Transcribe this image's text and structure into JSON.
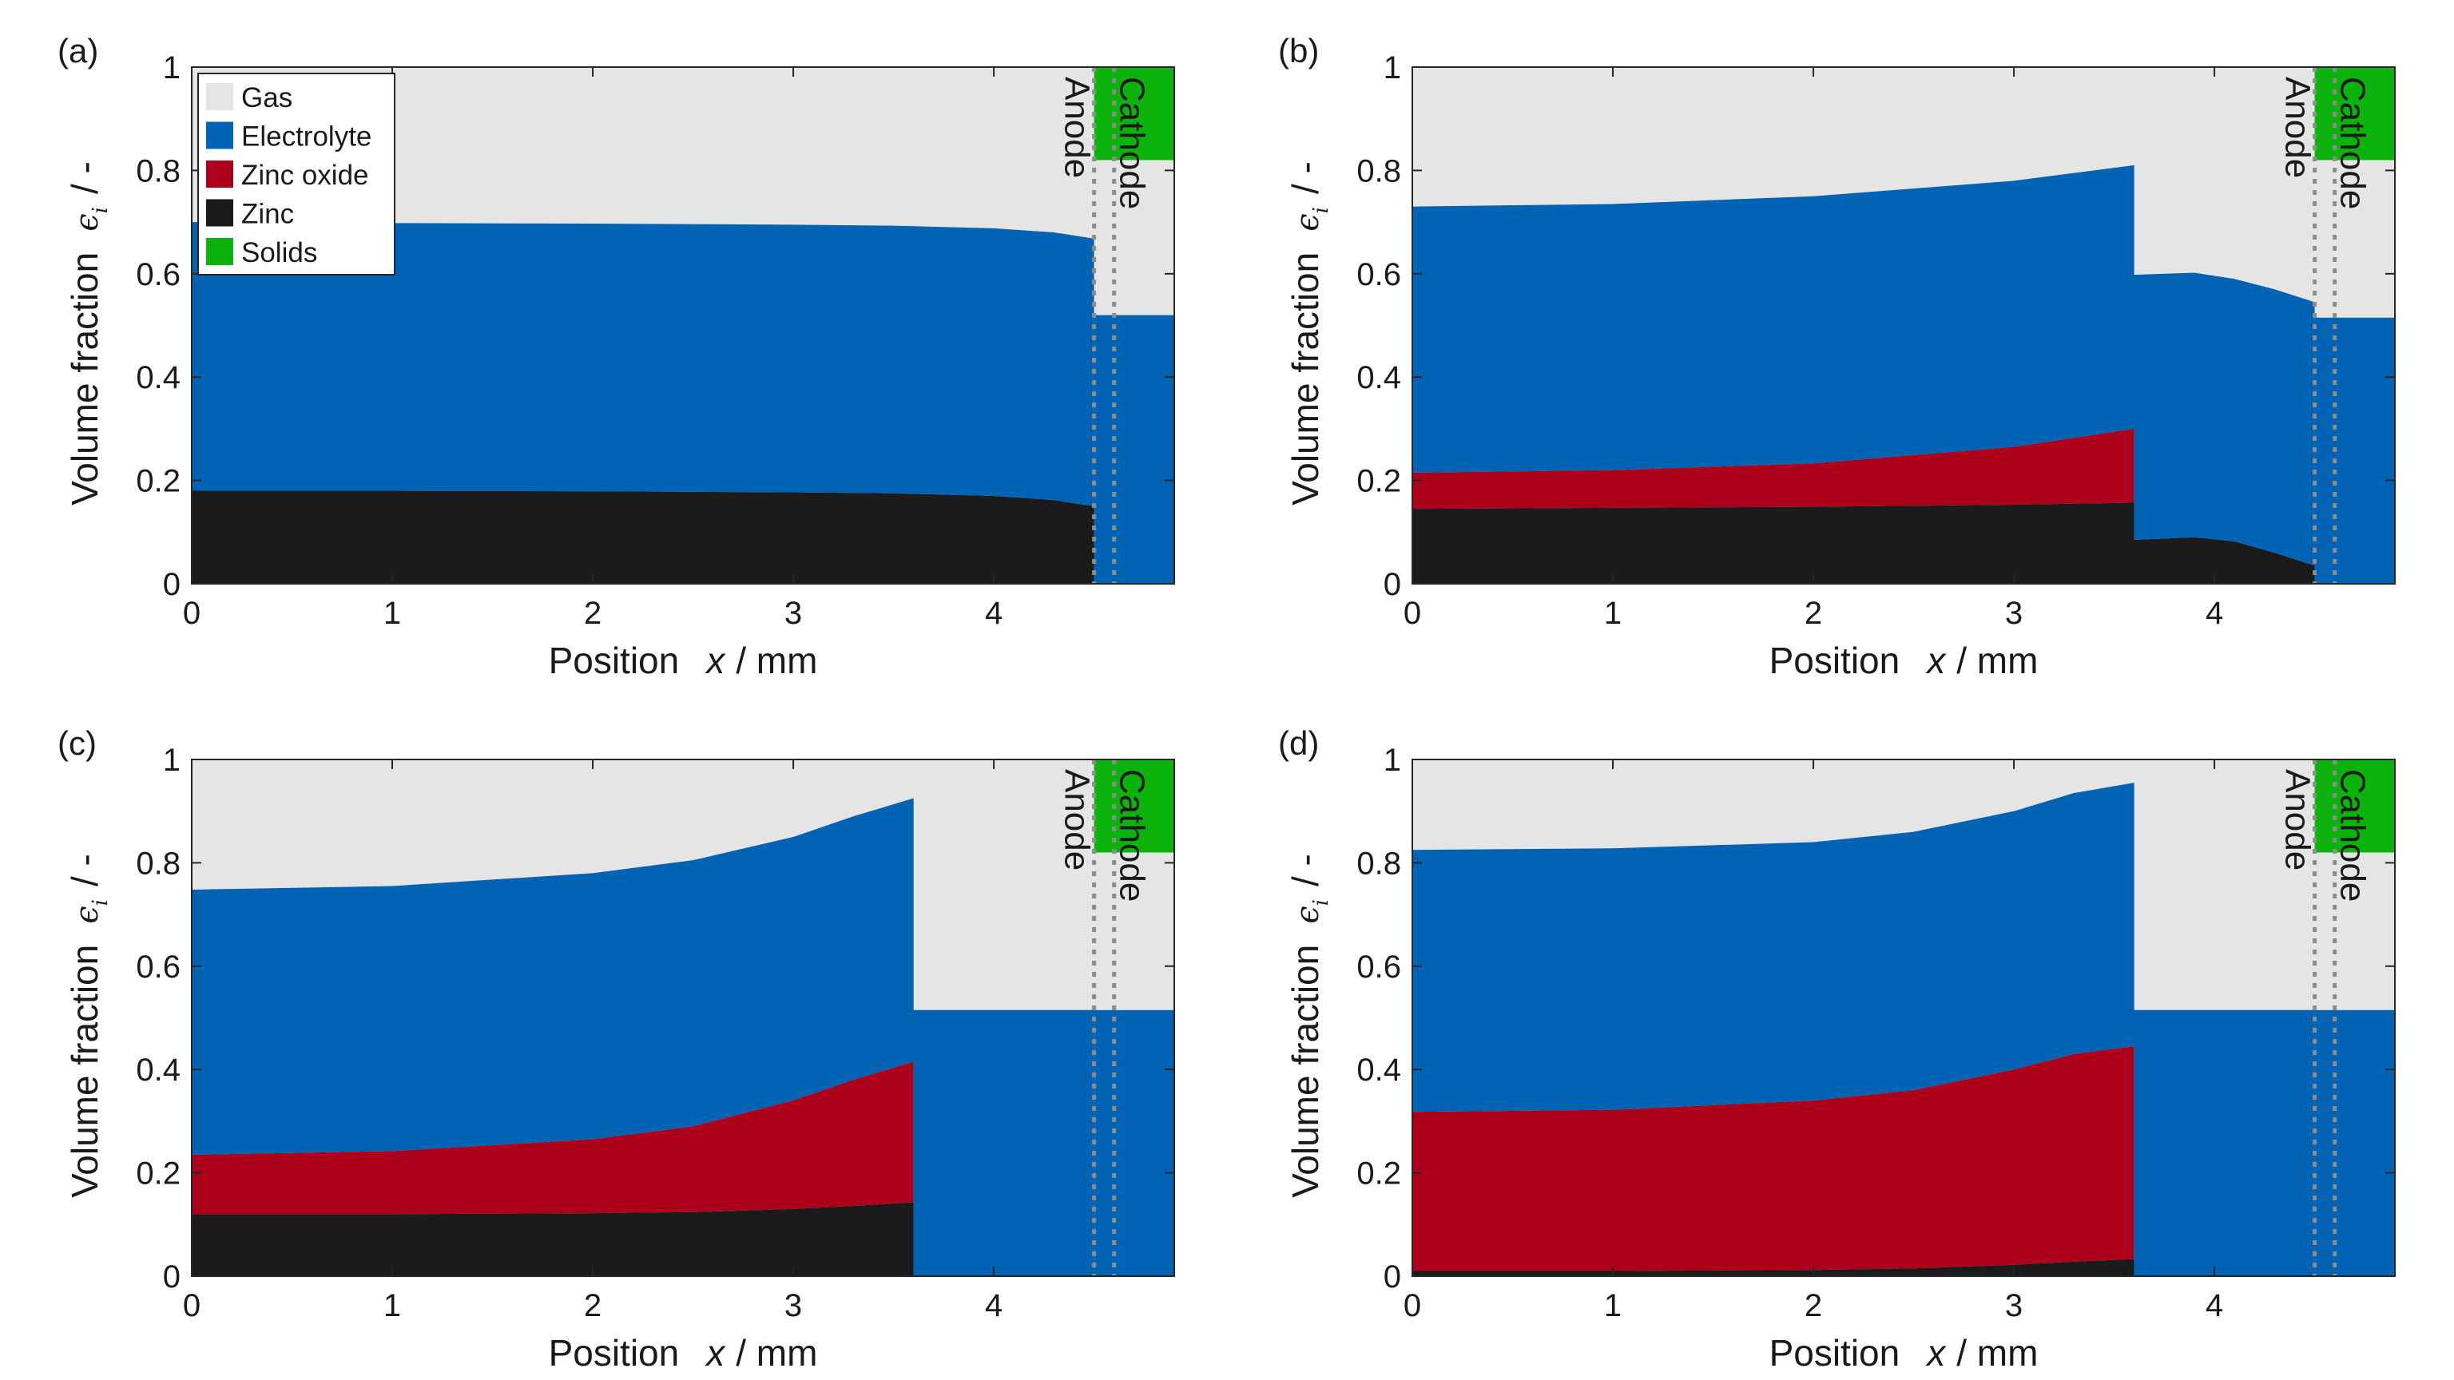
{
  "figure": {
    "legend": {
      "items": [
        {
          "label": "Gas",
          "color": "#e5e5e5"
        },
        {
          "label": "Electrolyte",
          "color": "#0163b3"
        },
        {
          "label": "Zinc oxide",
          "color": "#ac001b"
        },
        {
          "label": "Zinc",
          "color": "#1b1b1b"
        },
        {
          "label": "Solids",
          "color": "#0db30d"
        }
      ]
    },
    "region_labels": {
      "anode": "Anode",
      "cathode": "Cathode"
    },
    "axis": {
      "ylabel_text": "Volume fraction",
      "ylabel_symbol": "ϵ",
      "ylabel_sub": "i",
      "ylabel_unit": "/  -",
      "xlabel_text": "Position",
      "xlabel_symbol": "x",
      "xlabel_unit": "/ mm"
    }
  },
  "chart_data": [
    {
      "type": "area",
      "panel": "(a)",
      "xlabel": "Position x / mm",
      "ylabel": "Volume fraction ϵi / -",
      "xlim": [
        0,
        4.9
      ],
      "ylim": [
        0,
        1
      ],
      "xticks": [
        "0",
        "1",
        "2",
        "3",
        "4"
      ],
      "yticks": [
        "0",
        "0.2",
        "0.4",
        "0.6",
        "0.8",
        "1"
      ],
      "separator_x": [
        4.5,
        4.6
      ],
      "anode_end_x": 4.5,
      "cathode_start_x": 4.5,
      "cathode": {
        "zinc": 0,
        "zinc_oxide": 0,
        "electrolyte": 0.52,
        "solids_from": 0.82
      },
      "series": [
        {
          "name": "Zinc",
          "x": [
            0,
            1,
            2,
            3,
            3.5,
            4,
            4.3,
            4.5
          ],
          "values": [
            0.18,
            0.18,
            0.179,
            0.177,
            0.175,
            0.17,
            0.162,
            0.15
          ]
        },
        {
          "name": "Zinc oxide",
          "x": [
            0,
            1,
            2,
            3,
            3.5,
            4,
            4.3,
            4.5
          ],
          "values": [
            0.18,
            0.18,
            0.179,
            0.177,
            0.175,
            0.17,
            0.162,
            0.15
          ]
        },
        {
          "name": "Electrolyte",
          "x": [
            0,
            1,
            2,
            3,
            3.5,
            4,
            4.3,
            4.5
          ],
          "values": [
            0.7,
            0.698,
            0.697,
            0.695,
            0.693,
            0.688,
            0.68,
            0.668
          ]
        }
      ]
    },
    {
      "type": "area",
      "panel": "(b)",
      "xlabel": "Position x / mm",
      "ylabel": "Volume fraction ϵi / -",
      "xlim": [
        0,
        4.9
      ],
      "ylim": [
        0,
        1
      ],
      "xticks": [
        "0",
        "1",
        "2",
        "3",
        "4"
      ],
      "yticks": [
        "0",
        "0.2",
        "0.4",
        "0.6",
        "0.8",
        "1"
      ],
      "separator_x": [
        4.5,
        4.6
      ],
      "anode_end_x": 4.5,
      "cathode_start_x": 4.5,
      "cathode": {
        "zinc": 0,
        "zinc_oxide": 0,
        "electrolyte": 0.515,
        "solids_from": 0.82
      },
      "series": [
        {
          "name": "Zinc",
          "x": [
            0,
            1,
            2,
            3,
            3.6,
            3.6,
            3.9,
            4.1,
            4.3,
            4.5
          ],
          "values": [
            0.145,
            0.147,
            0.149,
            0.153,
            0.157,
            0.085,
            0.09,
            0.082,
            0.06,
            0.035
          ]
        },
        {
          "name": "Zinc oxide",
          "x": [
            0,
            1,
            2,
            3,
            3.6,
            3.6,
            3.9,
            4.1,
            4.3,
            4.5
          ],
          "values": [
            0.215,
            0.22,
            0.233,
            0.265,
            0.3,
            0.085,
            0.09,
            0.082,
            0.06,
            0.035
          ]
        },
        {
          "name": "Electrolyte",
          "x": [
            0,
            1,
            2,
            3,
            3.6,
            3.6,
            3.9,
            4.1,
            4.3,
            4.5
          ],
          "values": [
            0.73,
            0.735,
            0.75,
            0.78,
            0.81,
            0.598,
            0.602,
            0.59,
            0.57,
            0.545
          ]
        }
      ]
    },
    {
      "type": "area",
      "panel": "(c)",
      "xlabel": "Position x / mm",
      "ylabel": "Volume fraction ϵi / -",
      "xlim": [
        0,
        4.9
      ],
      "ylim": [
        0,
        1
      ],
      "xticks": [
        "0",
        "1",
        "2",
        "3",
        "4"
      ],
      "yticks": [
        "0",
        "0.2",
        "0.4",
        "0.6",
        "0.8",
        "1"
      ],
      "separator_x": [
        4.5,
        4.6
      ],
      "anode_end_x": 3.6,
      "cathode_start_x": 4.5,
      "cathode": {
        "zinc": 0,
        "zinc_oxide": 0,
        "electrolyte": 0.515,
        "solids_from": 0.82
      },
      "series": [
        {
          "name": "Zinc",
          "x": [
            0,
            1,
            2,
            2.5,
            3,
            3.3,
            3.6,
            3.6,
            4.5
          ],
          "values": [
            0.12,
            0.12,
            0.122,
            0.124,
            0.13,
            0.136,
            0.143,
            0,
            0
          ]
        },
        {
          "name": "Zinc oxide",
          "x": [
            0,
            1,
            2,
            2.5,
            3,
            3.3,
            3.6,
            3.6,
            4.5
          ],
          "values": [
            0.235,
            0.242,
            0.265,
            0.29,
            0.34,
            0.38,
            0.415,
            0,
            0
          ]
        },
        {
          "name": "Electrolyte",
          "x": [
            0,
            1,
            2,
            2.5,
            3,
            3.3,
            3.6,
            3.6,
            4.5
          ],
          "values": [
            0.748,
            0.755,
            0.78,
            0.805,
            0.85,
            0.89,
            0.925,
            0.515,
            0.515
          ]
        }
      ]
    },
    {
      "type": "area",
      "panel": "(d)",
      "xlabel": "Position x / mm",
      "ylabel": "Volume fraction ϵi / -",
      "xlim": [
        0,
        4.9
      ],
      "ylim": [
        0,
        1
      ],
      "xticks": [
        "0",
        "1",
        "2",
        "3",
        "4"
      ],
      "yticks": [
        "0",
        "0.2",
        "0.4",
        "0.6",
        "0.8",
        "1"
      ],
      "separator_x": [
        4.5,
        4.6
      ],
      "anode_end_x": 3.6,
      "cathode_start_x": 4.5,
      "cathode": {
        "zinc": 0,
        "zinc_oxide": 0,
        "electrolyte": 0.515,
        "solids_from": 0.82
      },
      "series": [
        {
          "name": "Zinc",
          "x": [
            0,
            1,
            2,
            2.5,
            3,
            3.3,
            3.6,
            3.6,
            4.5
          ],
          "values": [
            0.01,
            0.01,
            0.012,
            0.015,
            0.022,
            0.028,
            0.033,
            0,
            0
          ]
        },
        {
          "name": "Zinc oxide",
          "x": [
            0,
            1,
            2,
            2.5,
            3,
            3.3,
            3.6,
            3.6,
            4.5
          ],
          "values": [
            0.318,
            0.322,
            0.34,
            0.36,
            0.4,
            0.43,
            0.445,
            0,
            0
          ]
        },
        {
          "name": "Electrolyte",
          "x": [
            0,
            1,
            2,
            2.5,
            3,
            3.3,
            3.6,
            3.6,
            4.5
          ],
          "values": [
            0.825,
            0.828,
            0.84,
            0.86,
            0.9,
            0.935,
            0.955,
            0.515,
            0.515
          ]
        }
      ]
    }
  ]
}
